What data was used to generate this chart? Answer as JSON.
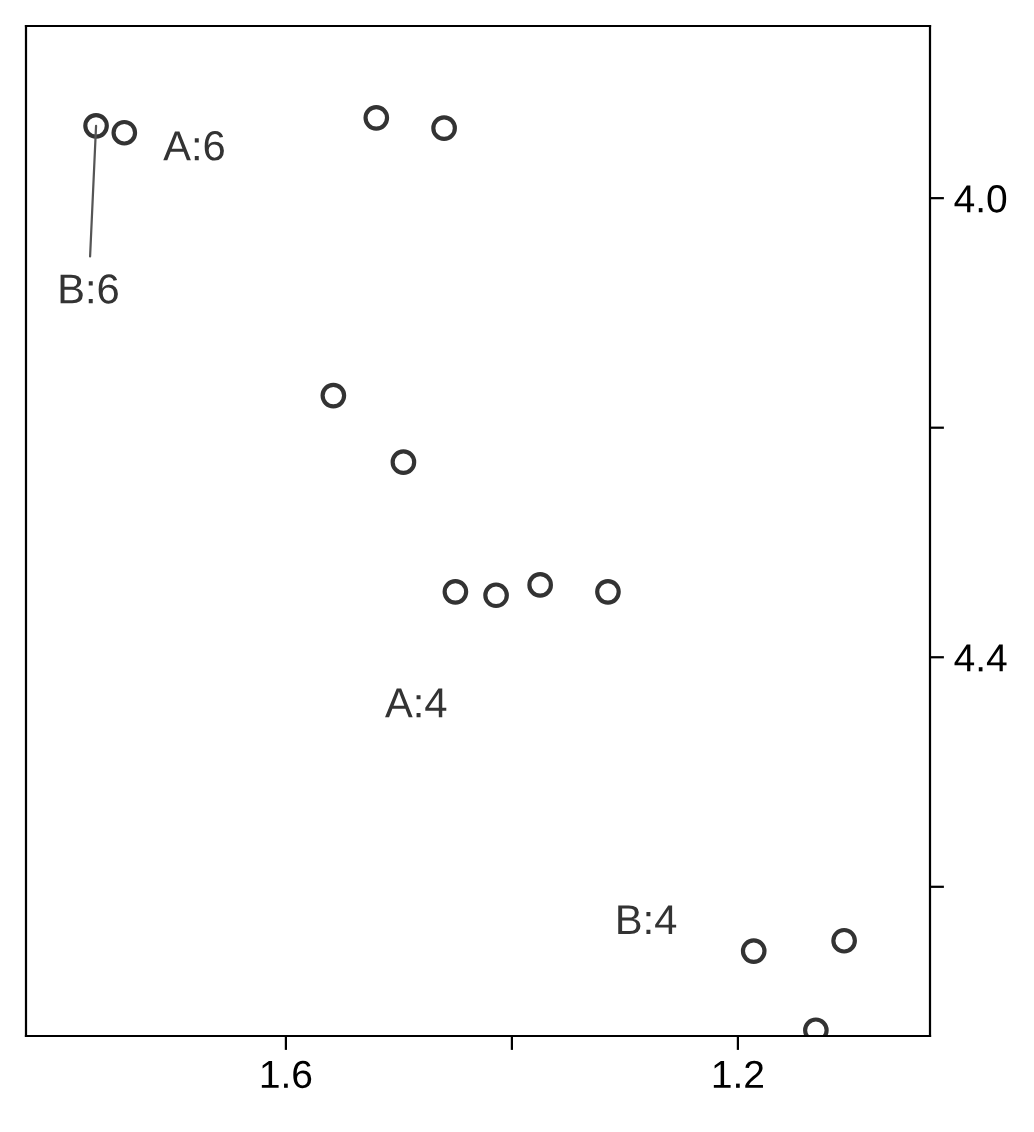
{
  "chart_data": {
    "type": "scatter",
    "x": [
      1.768,
      1.743,
      1.52,
      1.46,
      1.558,
      1.496,
      1.45,
      1.414,
      1.375,
      1.315,
      1.186,
      1.106,
      1.131
    ],
    "series": [
      {
        "color": "#333333",
        "values": [
          3.937,
          3.943,
          3.93,
          3.939,
          4.172,
          4.23,
          4.343,
          4.346,
          4.337,
          4.343,
          4.656,
          4.647,
          4.725
        ]
      }
    ],
    "marker": "circle",
    "xlim": [
      1.83,
      1.03
    ],
    "ylim": [
      4.73,
      3.85
    ],
    "xticks": [
      1.6,
      {
        "value": 1.4,
        "label": null
      },
      1.2
    ],
    "yticks": [
      {
        "value": 4.0,
        "label": "4.0"
      },
      {
        "value": 4.2,
        "label": null
      },
      4.4,
      {
        "value": 4.6,
        "label": null
      }
    ],
    "grid": false,
    "annotations": [
      {
        "text": "A:6",
        "x": 1.743,
        "y": 3.943
      },
      {
        "text": "B:6",
        "x": 1.768,
        "y": 3.937
      },
      {
        "text": "A:4",
        "x": 1.414,
        "y": 4.346
      },
      {
        "text": "B:4",
        "x": 1.186,
        "y": 4.656
      }
    ]
  }
}
